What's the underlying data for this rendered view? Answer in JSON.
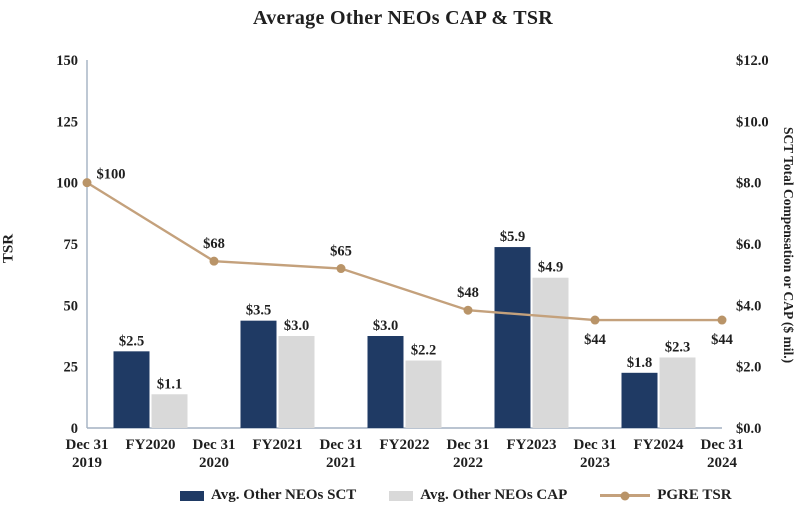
{
  "title": "Average Other NEOs CAP & TSR",
  "chart_data": {
    "type": "combo",
    "categories": [
      "Dec 31\n2019",
      "FY2020",
      "Dec 31\n2020",
      "FY2021",
      "Dec 31\n2021",
      "FY2022",
      "Dec 31\n2022",
      "FY2023",
      "Dec 31\n2023",
      "FY2024",
      "Dec 31\n2024"
    ],
    "left_axis": {
      "label": "TSR",
      "min": 0,
      "max": 150,
      "ticks": [
        {
          "value": 0,
          "label": "0"
        },
        {
          "value": 25,
          "label": "25"
        },
        {
          "value": 50,
          "label": "50"
        },
        {
          "value": 75,
          "label": "75"
        },
        {
          "value": 100,
          "label": "100"
        },
        {
          "value": 125,
          "label": "125"
        },
        {
          "value": 150,
          "label": "150"
        }
      ]
    },
    "right_axis": {
      "label": "SCT Total Compensation or CAP ($ mil.)",
      "min": 0,
      "max": 12,
      "ticks": [
        {
          "value": 0,
          "label": "$0.0"
        },
        {
          "value": 2,
          "label": "$2.0"
        },
        {
          "value": 4,
          "label": "$4.0"
        },
        {
          "value": 6,
          "label": "$6.0"
        },
        {
          "value": 8,
          "label": "$8.0"
        },
        {
          "value": 10,
          "label": "$10.0"
        },
        {
          "value": 12,
          "label": "$12.0"
        }
      ]
    },
    "series": [
      {
        "name": "Avg. Other NEOs SCT",
        "type": "bar",
        "axis": "right",
        "color": "#1f3a64",
        "x_indexes": [
          1,
          3,
          5,
          7,
          9
        ],
        "values": [
          2.5,
          3.5,
          3.0,
          5.9,
          1.8
        ],
        "labels": [
          "$2.5",
          "$3.5",
          "$3.0",
          "$5.9",
          "$1.8"
        ]
      },
      {
        "name": "Avg. Other NEOs CAP",
        "type": "bar",
        "axis": "right",
        "color": "#d9d9d9",
        "x_indexes": [
          1,
          3,
          5,
          7,
          9
        ],
        "values": [
          1.1,
          3.0,
          2.2,
          4.9,
          2.3
        ],
        "labels": [
          "$1.1",
          "$3.0",
          "$2.2",
          "$4.9",
          "$2.3"
        ]
      },
      {
        "name": "PGRE TSR",
        "type": "line",
        "axis": "left",
        "color": "#c4a17c",
        "marker_color": "#b99468",
        "x_indexes": [
          0,
          2,
          4,
          6,
          8,
          10
        ],
        "values": [
          100,
          68,
          65,
          48,
          44,
          44
        ],
        "labels": [
          "$100",
          "$68",
          "$65",
          "$48",
          "$44",
          "$44"
        ],
        "label_positions": [
          "above-right",
          "above",
          "above",
          "above",
          "below",
          "below"
        ]
      }
    ],
    "axis_line_color": "#a3b1c2",
    "text_color": "#1f1f1f",
    "grid": false,
    "legend_position": "bottom"
  }
}
